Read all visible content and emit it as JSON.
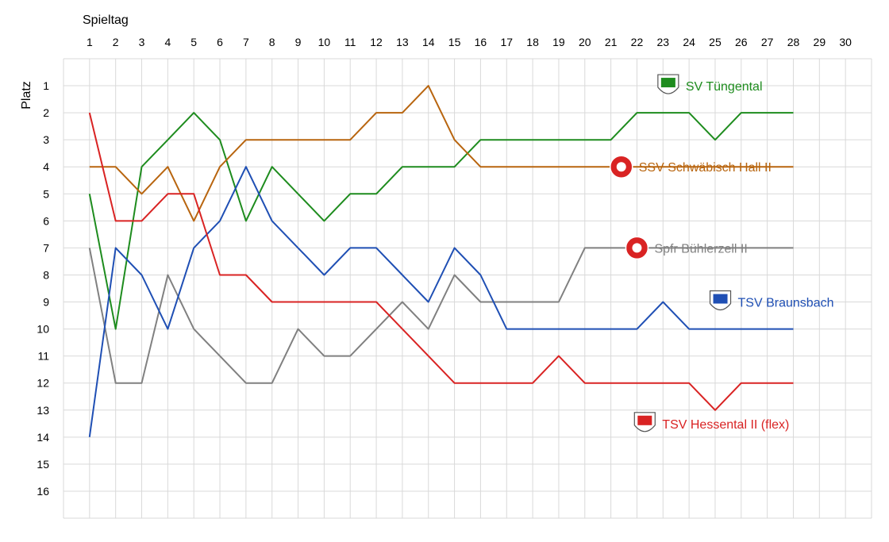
{
  "chart_data": {
    "type": "line",
    "xlabel": "Spieltag",
    "ylabel": "Platz",
    "x_ticks": [
      1,
      2,
      3,
      4,
      5,
      6,
      7,
      8,
      9,
      10,
      11,
      12,
      13,
      14,
      15,
      16,
      17,
      18,
      19,
      20,
      21,
      22,
      23,
      24,
      25,
      26,
      27,
      28,
      29,
      30
    ],
    "y_ticks": [
      1,
      2,
      3,
      4,
      5,
      6,
      7,
      8,
      9,
      10,
      11,
      12,
      13,
      14,
      15,
      16
    ],
    "xlim": [
      0,
      31
    ],
    "ylim": [
      17,
      0
    ],
    "y_reversed": true,
    "grid": true,
    "series": [
      {
        "name": "SV Tüngental",
        "color": "#1e8c1e",
        "x": [
          1,
          2,
          3,
          4,
          5,
          6,
          7,
          8,
          9,
          10,
          11,
          12,
          13,
          14,
          15,
          16,
          17,
          18,
          19,
          20,
          21,
          22,
          23,
          24,
          25,
          26,
          27,
          28
        ],
        "values": [
          5,
          10,
          4,
          3,
          2,
          3,
          6,
          4,
          5,
          6,
          5,
          5,
          4,
          4,
          4,
          3,
          3,
          3,
          3,
          3,
          3,
          2,
          2,
          2,
          3,
          2,
          2,
          2
        ]
      },
      {
        "name": "SSV Schwäbisch Hall II",
        "color": "#b8650f",
        "x": [
          1,
          2,
          3,
          4,
          5,
          6,
          7,
          8,
          9,
          10,
          11,
          12,
          13,
          14,
          15,
          16,
          17,
          18,
          19,
          20,
          21,
          22,
          23,
          24,
          25,
          26,
          27,
          28
        ],
        "values": [
          4,
          4,
          5,
          4,
          6,
          4,
          3,
          3,
          3,
          3,
          3,
          2,
          2,
          1,
          3,
          4,
          4,
          4,
          4,
          4,
          4,
          4,
          4,
          4,
          4,
          4,
          4,
          4
        ]
      },
      {
        "name": "Spfr Bühlerzell II",
        "color": "#808080",
        "x": [
          1,
          2,
          3,
          4,
          5,
          6,
          7,
          8,
          9,
          10,
          11,
          12,
          13,
          14,
          15,
          16,
          17,
          18,
          19,
          20,
          21,
          22,
          23,
          24,
          25,
          26,
          27,
          28
        ],
        "values": [
          7,
          12,
          12,
          8,
          10,
          11,
          12,
          12,
          10,
          11,
          11,
          10,
          9,
          10,
          8,
          9,
          9,
          9,
          9,
          7,
          7,
          7,
          7,
          7,
          7,
          7,
          7,
          7
        ]
      },
      {
        "name": "TSV Braunsbach",
        "color": "#1f4fb4",
        "x": [
          1,
          2,
          3,
          4,
          5,
          6,
          7,
          8,
          9,
          10,
          11,
          12,
          13,
          14,
          15,
          16,
          17,
          18,
          19,
          20,
          21,
          22,
          23,
          24,
          25,
          26,
          27,
          28
        ],
        "values": [
          14,
          7,
          8,
          10,
          7,
          6,
          4,
          6,
          7,
          8,
          7,
          7,
          8,
          9,
          7,
          8,
          10,
          10,
          10,
          10,
          10,
          10,
          9,
          10,
          10,
          10,
          10,
          10
        ]
      },
      {
        "name": "TSV Hessental II (flex)",
        "color": "#d92323",
        "x": [
          1,
          2,
          3,
          4,
          5,
          6,
          7,
          8,
          9,
          10,
          11,
          12,
          13,
          14,
          15,
          16,
          17,
          18,
          19,
          20,
          21,
          22,
          23,
          24,
          25,
          26,
          27,
          28
        ],
        "values": [
          2,
          6,
          6,
          5,
          5,
          8,
          8,
          9,
          9,
          9,
          9,
          9,
          10,
          11,
          12,
          12,
          12,
          12,
          11,
          12,
          12,
          12,
          12,
          12,
          13,
          12,
          12,
          12
        ]
      }
    ],
    "annotations": [
      {
        "series": "SV Tüngental",
        "text": "SV Tüngental",
        "logo": "shield-logo",
        "logo_color": "#1e8c1e",
        "x": 23.2,
        "y": 1
      },
      {
        "series": "SSV Schwäbisch Hall II",
        "text": "SSV Schwäbisch Hall II",
        "logo": "round-badge",
        "logo_color": "#d92323",
        "x": 21.4,
        "y": 4
      },
      {
        "series": "Spfr Bühlerzell II",
        "text": "Spfr Bühlerzell II",
        "logo": "round-badge",
        "logo_color": "#d92323",
        "x": 22.0,
        "y": 7
      },
      {
        "series": "TSV Braunsbach",
        "text": "TSV Braunsbach",
        "logo": "shield-logo",
        "logo_color": "#1f4fb4",
        "x": 25.2,
        "y": 9
      },
      {
        "series": "TSV Hessental II (flex)",
        "text": "TSV Hessental II (flex)",
        "logo": "shield-logo",
        "logo_color": "#d92323",
        "x": 22.3,
        "y": 13.5
      }
    ]
  }
}
